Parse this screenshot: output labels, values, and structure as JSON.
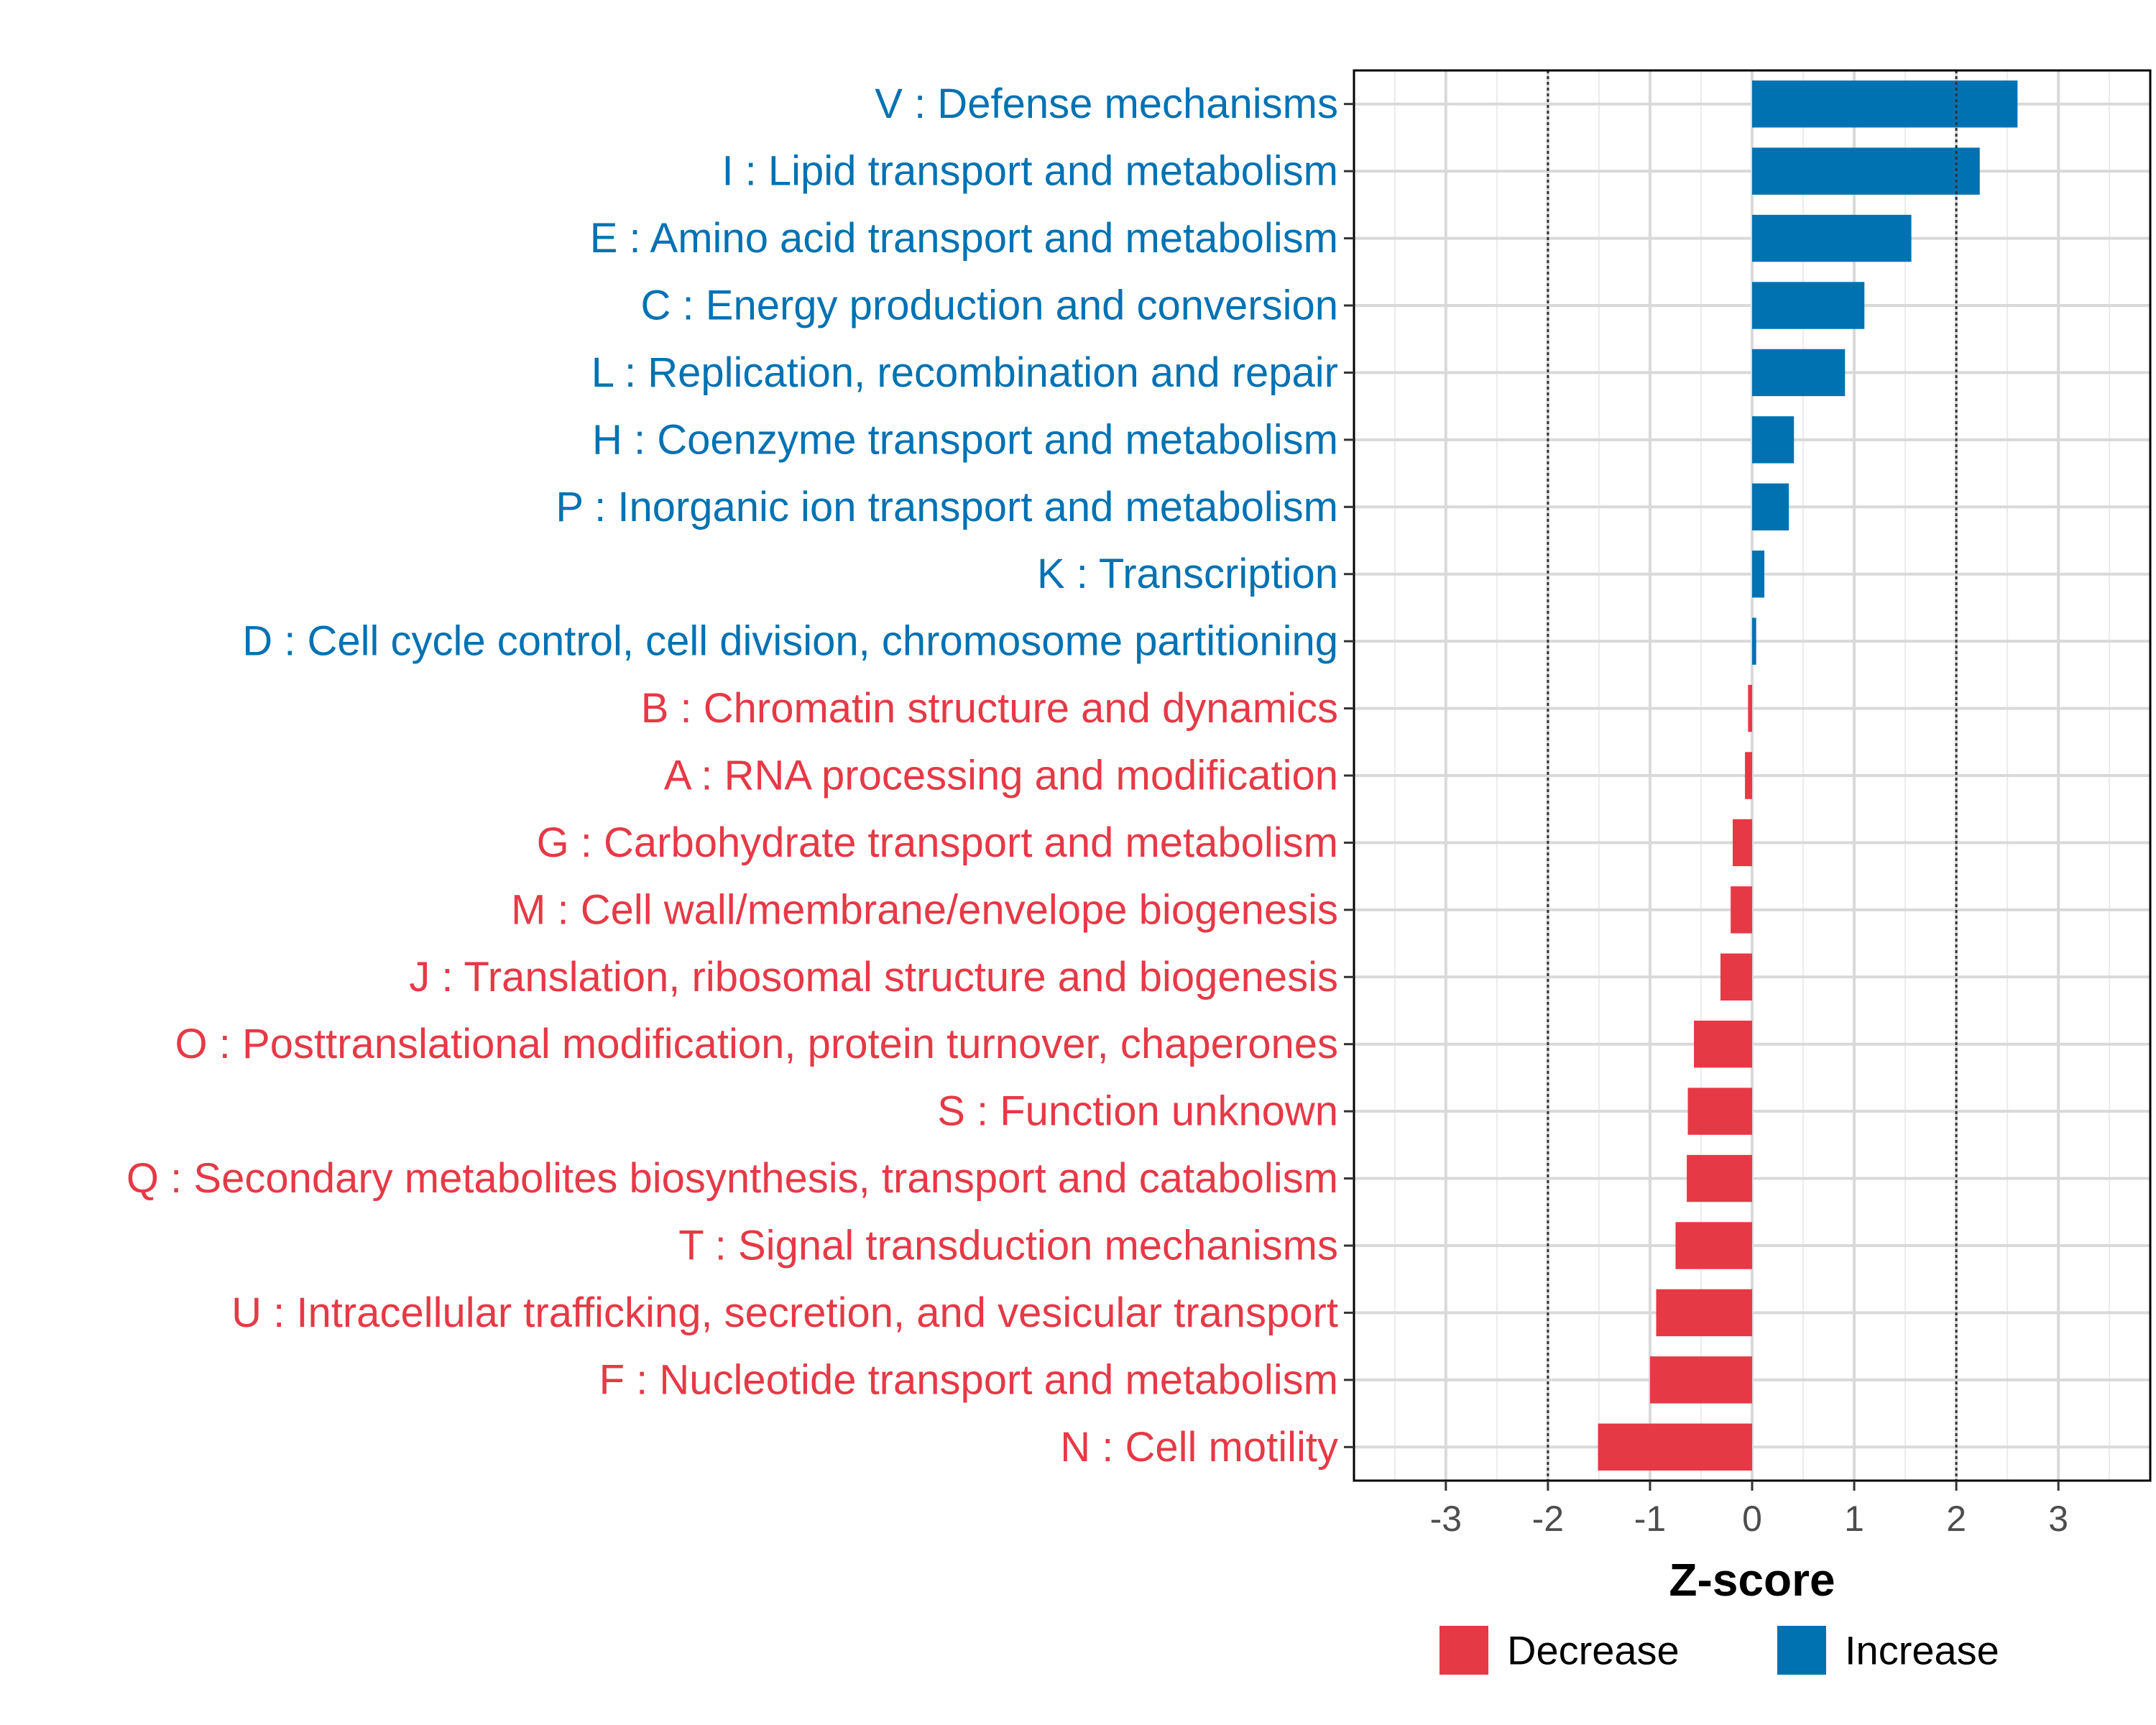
{
  "chart_data": {
    "type": "bar",
    "orientation": "horizontal",
    "xlabel": "Z-score",
    "ylabel": "",
    "xlim": [
      -3.9,
      3.9
    ],
    "xticks": [
      -3,
      -2,
      -1,
      0,
      1,
      2,
      3
    ],
    "xtick_labels": [
      "-3",
      "-2",
      "-1",
      "0",
      "1",
      "2",
      "3"
    ],
    "reference_lines": [
      -2,
      2
    ],
    "grid": true,
    "colors": {
      "Increase": "#0072B2",
      "Decrease": "#E63946"
    },
    "legend": {
      "position": "bottom",
      "entries": [
        {
          "name": "Decrease",
          "color": "#E63946"
        },
        {
          "name": "Increase",
          "color": "#0072B2"
        }
      ]
    },
    "categories": [
      "V : Defense mechanisms",
      "I : Lipid transport and metabolism",
      "E : Amino acid transport and metabolism",
      "C : Energy production and conversion",
      "L : Replication, recombination and repair",
      "H : Coenzyme transport and metabolism",
      "P : Inorganic ion transport and metabolism",
      "K : Transcription",
      "D : Cell cycle control, cell division, chromosome partitioning",
      "B : Chromatin structure and dynamics",
      "A : RNA processing and modification",
      "G : Carbohydrate transport and metabolism",
      "M : Cell wall/membrane/envelope biogenesis",
      "J : Translation, ribosomal structure and biogenesis",
      "O : Posttranslational modification, protein turnover, chaperones",
      "S : Function unknown",
      "Q : Secondary metabolites biosynthesis, transport and catabolism",
      "T : Signal transduction mechanisms",
      "U : Intracellular trafficking, secretion, and vesicular transport",
      "F : Nucleotide transport and metabolism",
      "N : Cell motility"
    ],
    "values": [
      2.6,
      2.23,
      1.56,
      1.1,
      0.91,
      0.41,
      0.36,
      0.12,
      0.04,
      -0.04,
      -0.07,
      -0.19,
      -0.21,
      -0.31,
      -0.57,
      -0.63,
      -0.64,
      -0.75,
      -0.94,
      -1.0,
      -1.51
    ],
    "groups": [
      "Increase",
      "Increase",
      "Increase",
      "Increase",
      "Increase",
      "Increase",
      "Increase",
      "Increase",
      "Increase",
      "Decrease",
      "Decrease",
      "Decrease",
      "Decrease",
      "Decrease",
      "Decrease",
      "Decrease",
      "Decrease",
      "Decrease",
      "Decrease",
      "Decrease",
      "Decrease"
    ]
  }
}
